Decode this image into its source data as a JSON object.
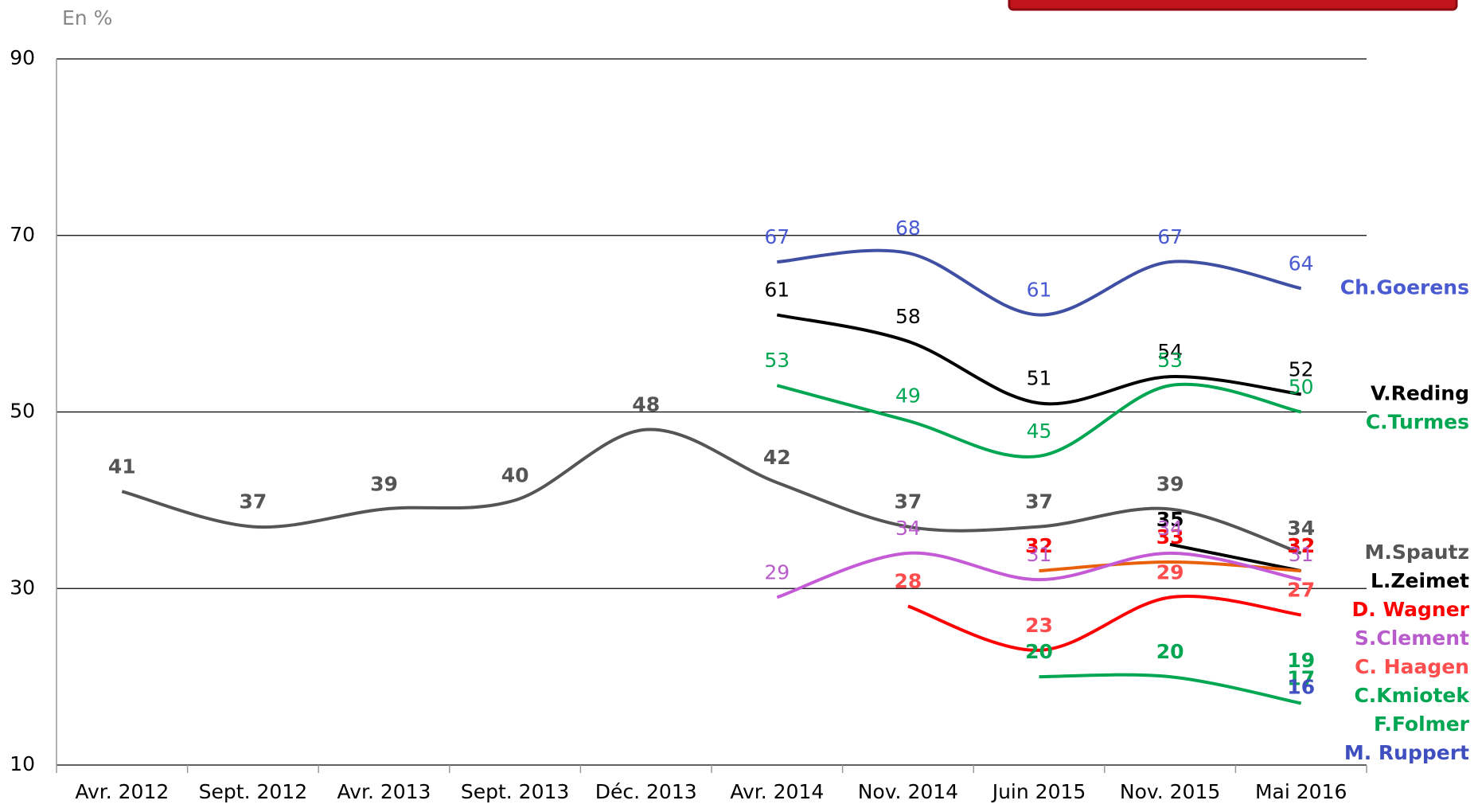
{
  "chart_data": {
    "type": "line",
    "subtitle": "En %",
    "categories": [
      "Avr. 2012",
      "Sept. 2012",
      "Avr. 2013",
      "Sept. 2013",
      "Déc. 2013",
      "Avr. 2014",
      "Nov. 2014",
      "Juin 2015",
      "Nov. 2015",
      "Mai 2016"
    ],
    "ylim": [
      10,
      90
    ],
    "yticks": [
      10,
      30,
      50,
      70,
      90
    ],
    "grid": true,
    "series": [
      {
        "name": "Ch.Goerens",
        "color": "#3f4fa3",
        "label_color": "#4a5ad0",
        "bold": false,
        "values": [
          null,
          null,
          null,
          null,
          null,
          67,
          68,
          61,
          67,
          64
        ]
      },
      {
        "name": "V.Reding",
        "color": "#000000",
        "label_color": "#000000",
        "bold": false,
        "values": [
          null,
          null,
          null,
          null,
          null,
          61,
          58,
          51,
          54,
          52
        ]
      },
      {
        "name": "C.Turmes",
        "color": "#00a651",
        "label_color": "#00a651",
        "bold": false,
        "values": [
          null,
          null,
          null,
          null,
          null,
          53,
          49,
          45,
          53,
          50
        ]
      },
      {
        "name": "M.Spautz",
        "color": "#555555",
        "label_color": "#555555",
        "bold": true,
        "values": [
          41,
          37,
          39,
          40,
          48,
          42,
          37,
          37,
          39,
          34
        ]
      },
      {
        "name": "L.Zeimet",
        "color": "#000000",
        "label_color": "#000000",
        "bold": true,
        "values": [
          null,
          null,
          null,
          null,
          null,
          null,
          null,
          null,
          35,
          32
        ]
      },
      {
        "name": "D. Wagner",
        "color": "#e8600a",
        "label_color": "#ff0000",
        "bold": true,
        "values": [
          null,
          null,
          null,
          null,
          null,
          null,
          null,
          32,
          33,
          32
        ]
      },
      {
        "name": "S.Clement",
        "color": "#c55ad6",
        "label_color": "#b85ccc",
        "bold": false,
        "values": [
          null,
          null,
          null,
          null,
          null,
          29,
          34,
          31,
          34,
          31
        ]
      },
      {
        "name": "C. Haagen",
        "color": "#ff0000",
        "label_color": "#ff4d4d",
        "bold": true,
        "values": [
          null,
          null,
          null,
          null,
          null,
          null,
          28,
          23,
          29,
          27
        ]
      },
      {
        "name": "C.Kmiotek",
        "color": "#00a651",
        "label_color": "#00a651",
        "bold": true,
        "values": [
          null,
          null,
          null,
          null,
          null,
          null,
          null,
          null,
          null,
          19
        ]
      },
      {
        "name": "F.Folmer",
        "color": "#00a651",
        "label_color": "#00a651",
        "bold": true,
        "values": [
          null,
          null,
          null,
          null,
          null,
          null,
          null,
          20,
          20,
          17
        ]
      },
      {
        "name": "M. Ruppert",
        "color": "#3f4fa3",
        "label_color": "#3f4fbf",
        "bold": true,
        "values": [
          null,
          null,
          null,
          null,
          null,
          null,
          null,
          null,
          null,
          16
        ]
      }
    ]
  }
}
